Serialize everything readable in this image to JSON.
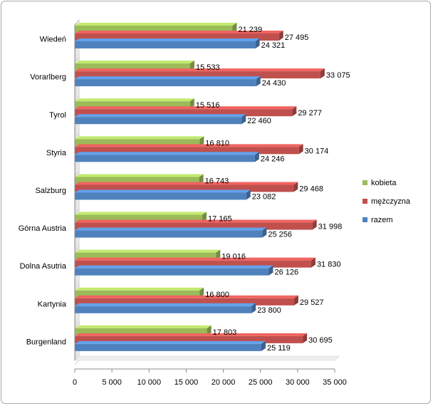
{
  "chart_data": {
    "type": "bar",
    "orientation": "horizontal",
    "categories": [
      "Wiedeń",
      "Vorarlberg",
      "Tyrol",
      "Styria",
      "Salzburg",
      "Górna Austria",
      "Dolna Asutria",
      "Kartynia",
      "Burgenland"
    ],
    "series": [
      {
        "name": "kobieta",
        "color": "#9bbb59",
        "values": [
          21239,
          15533,
          15516,
          16810,
          16743,
          17165,
          19016,
          16800,
          17803
        ],
        "labels": [
          "21 239",
          "15 533",
          "15 516",
          "16 810",
          "16 743",
          "17 165",
          "19 016",
          "16 800",
          "17 803"
        ]
      },
      {
        "name": "mężczyzna",
        "color": "#c0504d",
        "values": [
          27495,
          33075,
          29277,
          30174,
          29468,
          31998,
          31830,
          29527,
          30695
        ],
        "labels": [
          "27 495",
          "33 075",
          "29 277",
          "30 174",
          "29 468",
          "31 998",
          "31 830",
          "29 527",
          "30 695"
        ]
      },
      {
        "name": "razem",
        "color": "#4f81bd",
        "values": [
          24321,
          24430,
          22460,
          24246,
          23082,
          25256,
          26126,
          23800,
          25119
        ],
        "labels": [
          "24 321",
          "24 430",
          "22 460",
          "24 246",
          "23 082",
          "25 256",
          "26 126",
          "23 800",
          "25 119"
        ]
      }
    ],
    "xlim": [
      0,
      35000
    ],
    "xticks": [
      0,
      5000,
      10000,
      15000,
      20000,
      25000,
      30000,
      35000
    ],
    "xtick_labels": [
      "0",
      "5 000",
      "10 000",
      "15 000",
      "20 000",
      "25 000",
      "30 000",
      "35 000"
    ],
    "legend_position": "right",
    "grid": false,
    "title": "",
    "xlabel": "",
    "ylabel": ""
  }
}
